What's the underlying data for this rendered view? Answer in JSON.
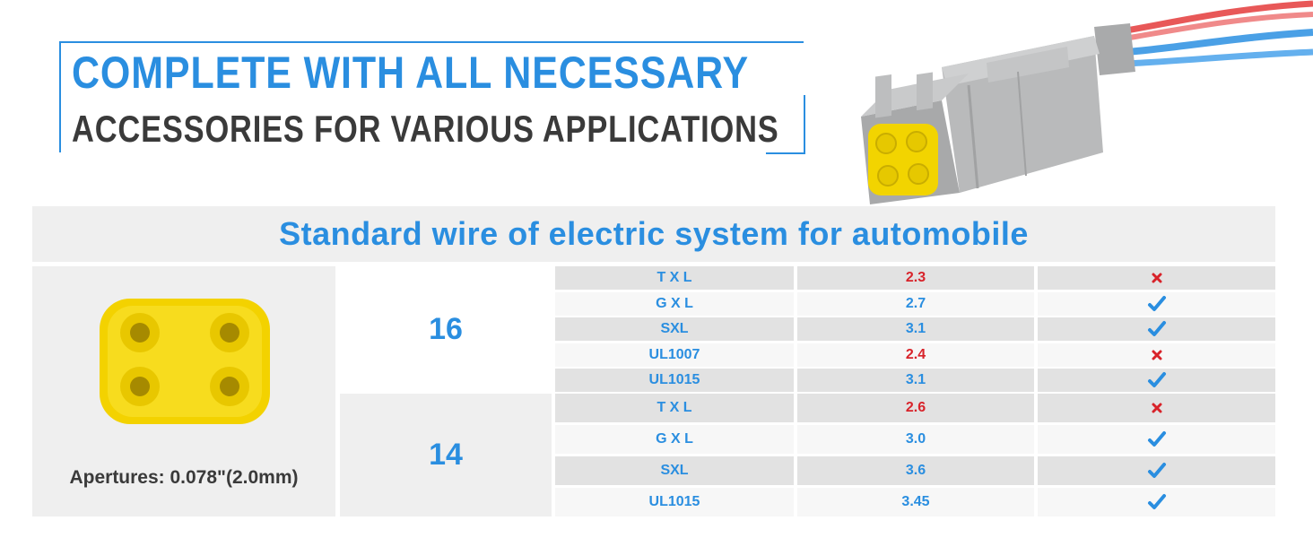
{
  "headline": {
    "line1": "COMPLETE WITH ALL NECESSARY",
    "line2": "ACCESSORIES FOR VARIOUS APPLICATIONS"
  },
  "table": {
    "title": "Standard wire of electric system for automobile",
    "aperture_label": "Apertures: 0.078\"(2.0mm)",
    "gauges": [
      {
        "gauge": "16",
        "rows": [
          {
            "type": "T X L",
            "value": "2.3",
            "fits": false
          },
          {
            "type": "G X L",
            "value": "2.7",
            "fits": true
          },
          {
            "type": "SXL",
            "value": "3.1",
            "fits": true
          },
          {
            "type": "UL1007",
            "value": "2.4",
            "fits": false
          },
          {
            "type": "UL1015",
            "value": "3.1",
            "fits": true
          }
        ]
      },
      {
        "gauge": "14",
        "rows": [
          {
            "type": "T X L",
            "value": "2.6",
            "fits": false
          },
          {
            "type": "G X L",
            "value": "3.0",
            "fits": true
          },
          {
            "type": "SXL",
            "value": "3.6",
            "fits": true
          },
          {
            "type": "UL1015",
            "value": "3.45",
            "fits": true
          }
        ]
      }
    ]
  },
  "colors": {
    "accent_blue": "#2a8ee0",
    "text_dark": "#3a3a3a",
    "fail_red": "#d8232a",
    "row_grey": "#e2e2e2",
    "band_grey": "#efefef"
  },
  "icons": {
    "pass": "check-icon",
    "fail": "cross-icon"
  }
}
